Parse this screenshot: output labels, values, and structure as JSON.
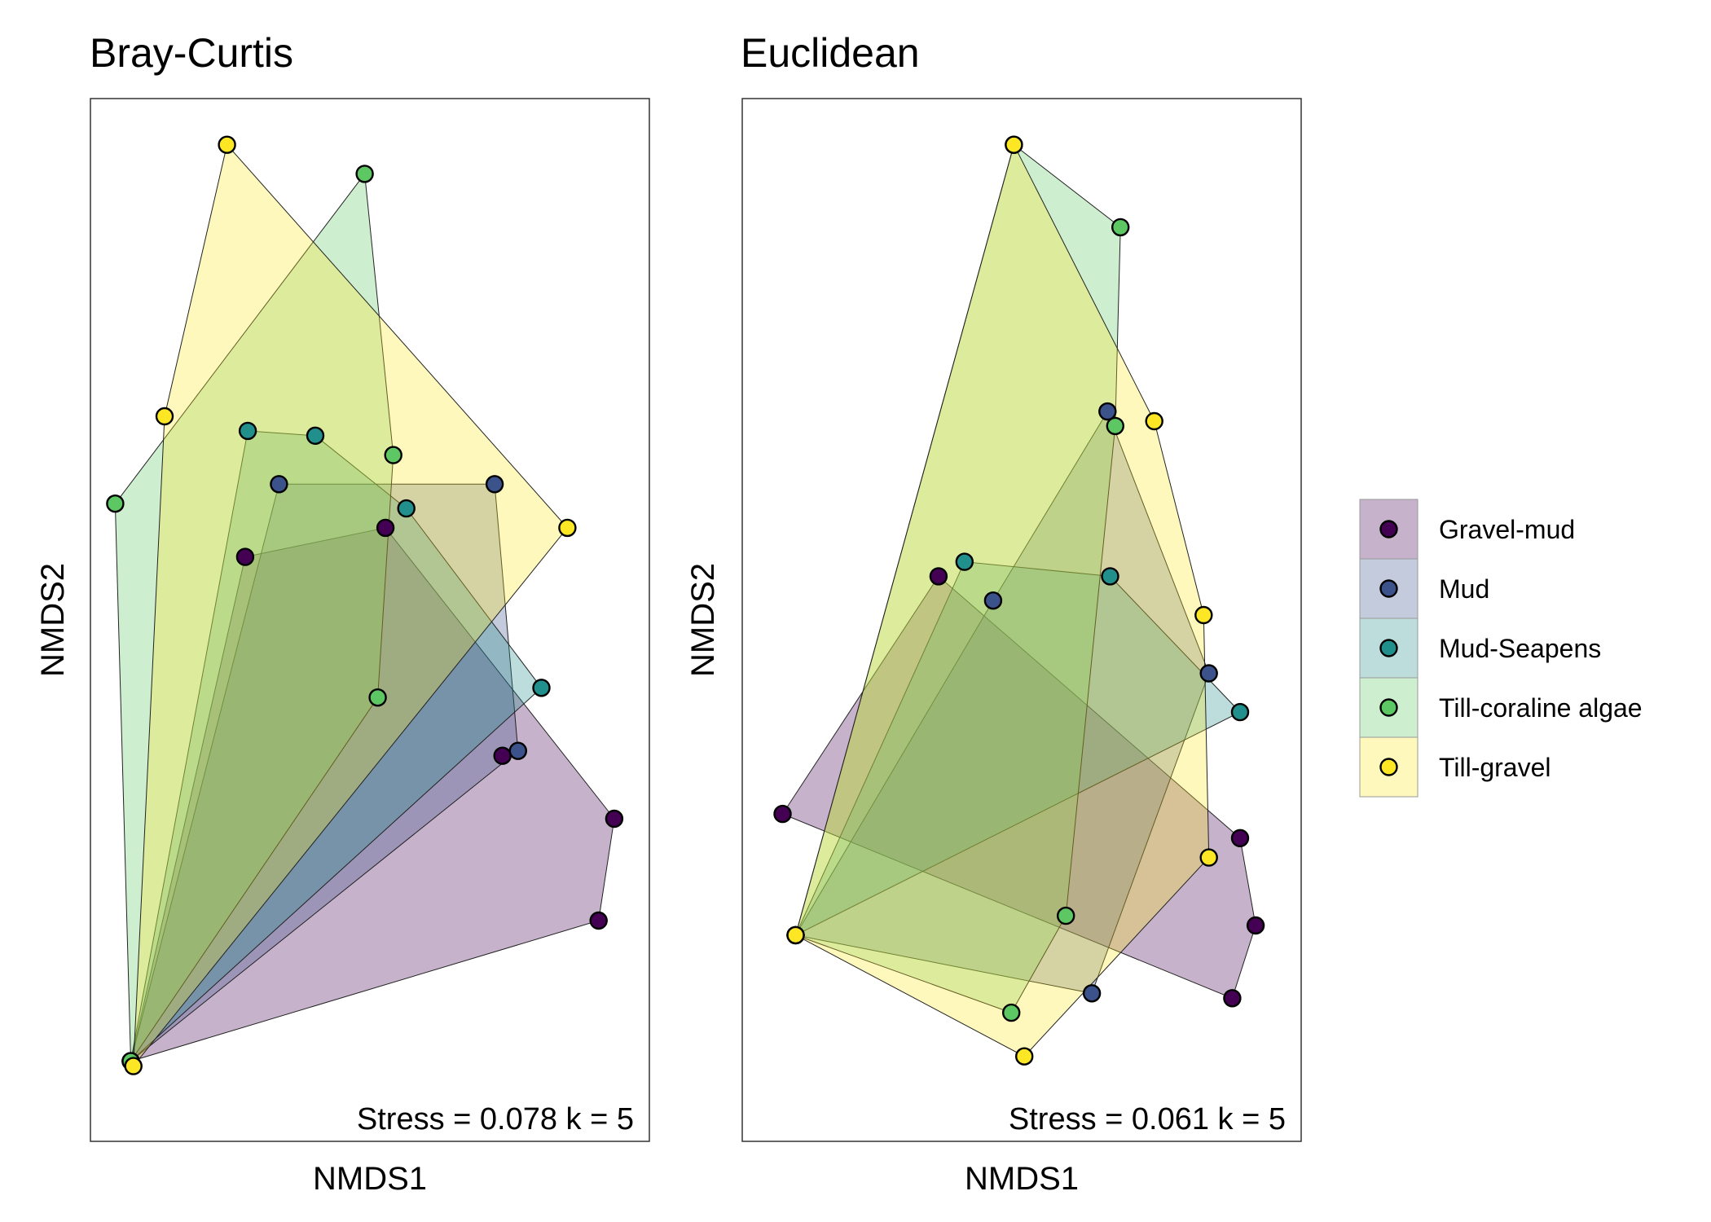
{
  "legend": {
    "entries": [
      "Gravel-mud",
      "Mud",
      "Mud-Seapens",
      "Till-coraline algae",
      "Till-gravel"
    ],
    "colors": [
      "#440154",
      "#3b528b",
      "#21908c",
      "#5dc863",
      "#fde725"
    ]
  },
  "chart_data": [
    {
      "type": "scatter",
      "title": "Bray-Curtis",
      "xlabel": "NMDS1",
      "ylabel": "NMDS2",
      "annotation": "Stress = 0.078 k = 5",
      "xlim": [
        -1.0,
        1.0
      ],
      "ylim": [
        -1.0,
        1.0
      ],
      "hulls": true,
      "series": [
        {
          "name": "Gravel-mud",
          "points": [
            [
              -0.92,
              -0.91
            ],
            [
              -0.48,
              0.13
            ],
            [
              0.06,
              0.19
            ],
            [
              0.51,
              -0.28
            ],
            [
              0.94,
              -0.41
            ],
            [
              0.88,
              -0.62
            ]
          ]
        },
        {
          "name": "Mud",
          "points": [
            [
              -0.92,
              -0.91
            ],
            [
              -0.35,
              0.28
            ],
            [
              0.48,
              0.28
            ],
            [
              0.57,
              -0.27
            ]
          ]
        },
        {
          "name": "Mud-Seapens",
          "points": [
            [
              -0.92,
              -0.91
            ],
            [
              -0.47,
              0.39
            ],
            [
              -0.21,
              0.38
            ],
            [
              0.14,
              0.23
            ],
            [
              0.66,
              -0.14
            ]
          ]
        },
        {
          "name": "Till-coraline algae",
          "points": [
            [
              -0.92,
              -0.91
            ],
            [
              -0.98,
              0.24
            ],
            [
              -0.02,
              0.92
            ],
            [
              0.09,
              0.34
            ],
            [
              0.03,
              -0.16
            ]
          ]
        },
        {
          "name": "Till-gravel",
          "points": [
            [
              -0.91,
              -0.92
            ],
            [
              -0.79,
              0.42
            ],
            [
              -0.55,
              0.98
            ],
            [
              0.76,
              0.19
            ]
          ]
        }
      ]
    },
    {
      "type": "scatter",
      "title": "Euclidean",
      "xlabel": "NMDS1",
      "ylabel": "NMDS2",
      "annotation": "Stress = 0.061 k = 5",
      "xlim": [
        -1.0,
        1.0
      ],
      "ylim": [
        -1.0,
        1.0
      ],
      "hulls": true,
      "series": [
        {
          "name": "Gravel-mud",
          "points": [
            [
              -0.92,
              -0.4
            ],
            [
              -0.32,
              0.09
            ],
            [
              0.84,
              -0.45
            ],
            [
              0.9,
              -0.63
            ],
            [
              0.81,
              -0.78
            ]
          ]
        },
        {
          "name": "Mud",
          "points": [
            [
              -0.87,
              -0.65
            ],
            [
              -0.11,
              0.04
            ],
            [
              0.33,
              0.43
            ],
            [
              0.72,
              -0.11
            ],
            [
              0.27,
              -0.77
            ]
          ]
        },
        {
          "name": "Mud-Seapens",
          "points": [
            [
              -0.87,
              -0.65
            ],
            [
              -0.22,
              0.12
            ],
            [
              0.34,
              0.09
            ],
            [
              0.84,
              -0.19
            ]
          ]
        },
        {
          "name": "Till-coraline algae",
          "points": [
            [
              -0.87,
              -0.65
            ],
            [
              -0.03,
              0.98
            ],
            [
              0.38,
              0.81
            ],
            [
              0.36,
              0.4
            ],
            [
              0.17,
              -0.61
            ],
            [
              -0.04,
              -0.81
            ]
          ]
        },
        {
          "name": "Till-gravel",
          "points": [
            [
              -0.87,
              -0.65
            ],
            [
              -0.03,
              0.98
            ],
            [
              0.51,
              0.41
            ],
            [
              0.7,
              0.01
            ],
            [
              0.72,
              -0.49
            ],
            [
              0.01,
              -0.9
            ]
          ]
        }
      ]
    }
  ]
}
